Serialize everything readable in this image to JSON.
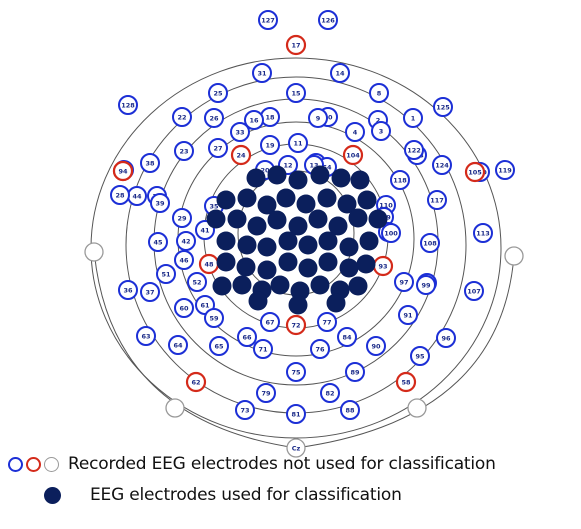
{
  "colors": {
    "blue": "#1c2fd6",
    "red": "#d42a1a",
    "gray": "#9a9a9a",
    "navy": "#0b1f5c",
    "ring": "#555555"
  },
  "electrodes": {
    "blue_labeled": [
      "127",
      "126",
      "31",
      "14",
      "25",
      "15",
      "8",
      "128",
      "22",
      "18",
      "10",
      "2",
      "125",
      "26",
      "16",
      "11",
      "9",
      "1",
      "33",
      "4",
      "3",
      "23",
      "19",
      "12",
      "5",
      "124",
      "27",
      "20",
      "54",
      "123",
      "122",
      "38",
      "13",
      "44",
      "118",
      "120",
      "119",
      "28",
      "34",
      "117",
      "39",
      "110",
      "29",
      "35",
      "109",
      "43",
      "41",
      "42",
      "102",
      "108",
      "113",
      "36",
      "37",
      "45",
      "46",
      "51",
      "60",
      "100",
      "107",
      "101",
      "52",
      "61",
      "99",
      "97",
      "95",
      "59",
      "66",
      "65",
      "71",
      "76",
      "84",
      "90",
      "91",
      "63",
      "64",
      "96",
      "67",
      "77",
      "75",
      "89",
      "73",
      "79",
      "82",
      "81",
      "88"
    ],
    "red_labeled": [
      "17",
      "49",
      "24",
      "104",
      "105",
      "48",
      "93",
      "72",
      "62",
      "58",
      "94"
    ],
    "gray_labeled": [
      "Cz"
    ]
  },
  "legend": {
    "not_used": "Recorded EEG electrodes not used for classification",
    "used": "EEG electrodes used for classification"
  }
}
